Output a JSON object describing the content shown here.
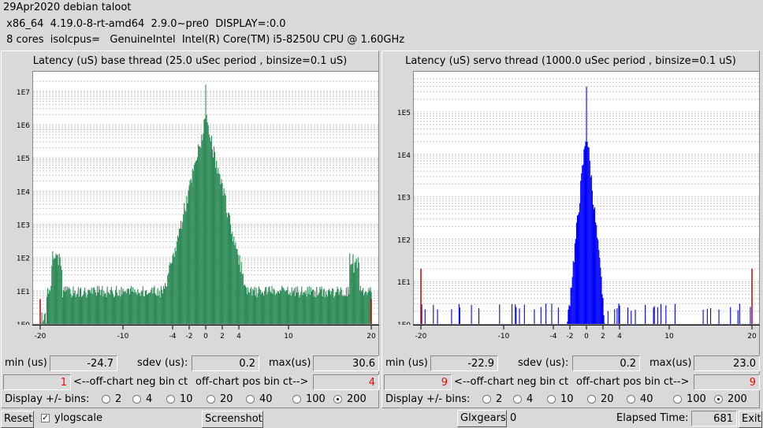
{
  "header": {
    "line1": "29Apr2020 debian taloot",
    "line2": " x86_64  4.19.0-8-rt-amd64  2.9.0~pre0  DISPLAY=:0.0",
    "line3": " 8 cores  isolcpus=   GenuineIntel  Intel(R) Core(TM) i5-8250U CPU @ 1.60GHz"
  },
  "base": {
    "title": "Latency (uS) base thread (25.0 uSec period , binsize=0.1 uS)",
    "min_label": "min (us)",
    "min": "-24.7",
    "sdev_label": "sdev (us):",
    "sdev": "0.2",
    "max_label": "max(us)",
    "max": "30.6",
    "neg_ct": "1",
    "neg_label": "<--off-chart neg bin ct",
    "pos_label": "off-chart pos bin ct-->",
    "pos_ct": "4",
    "bins_label": "Display +/- bins:",
    "bins": [
      "2",
      "4",
      "10",
      "20",
      "40",
      "100",
      "200"
    ],
    "selected_bin": "200"
  },
  "servo": {
    "title": "Latency (uS) servo thread (1000.0 uSec period , binsize=0.1 uS)",
    "min_label": "min (us)",
    "min": "-22.9",
    "sdev_label": "sdev (us):",
    "sdev": "0.2",
    "max_label": "max(us)",
    "max": "23.0",
    "neg_ct": "9",
    "neg_label": "<--off-chart neg bin ct",
    "pos_label": "off-chart pos bin ct-->",
    "pos_ct": "9",
    "bins_label": "Display +/- bins:",
    "bins": [
      "2",
      "4",
      "10",
      "20",
      "40",
      "100",
      "200"
    ],
    "selected_bin": "200"
  },
  "footer": {
    "reset": "Reset",
    "ylog_label": "ylogscale",
    "ylog_checked": true,
    "screenshot": "Screenshot",
    "glxgears": "Glxgears",
    "glx_count": "0",
    "elapsed_label": "Elapsed Time:",
    "elapsed": "681",
    "exit": "Exit"
  },
  "chart_data": [
    {
      "type": "bar",
      "title": "Latency (uS) base thread (25.0 uSec period , binsize=0.1 uS)",
      "color": "#2e8b57",
      "x_ticks": [
        "-20",
        "-10",
        "-4",
        "-2",
        "0",
        "2",
        "4",
        "10",
        "20"
      ],
      "y_ticks": [
        "1E0",
        "1E1",
        "1E2",
        "1E3",
        "1E4",
        "1E5",
        "1E6",
        "1E7"
      ],
      "ylog": true,
      "xlim": [
        -20,
        20
      ],
      "ylim_log10": [
        0,
        7.4
      ],
      "peak_log10": 7.2,
      "core_width": 1.6,
      "tail_log10": 0.9
    },
    {
      "type": "bar",
      "title": "Latency (uS) servo thread (1000.0 uSec period , binsize=0.1 uS)",
      "color": "#0000ff",
      "x_ticks": [
        "-20",
        "-10",
        "-4",
        "-2",
        "0",
        "2",
        "4",
        "10",
        "20"
      ],
      "y_ticks": [
        "1E0",
        "1E1",
        "1E2",
        "1E3",
        "1E4",
        "1E5"
      ],
      "ylog": true,
      "xlim": [
        -20,
        20
      ],
      "ylim_log10": [
        0,
        5.8
      ],
      "peak_log10": 5.6,
      "core_width": 0.9,
      "tail_log10": 0.35
    }
  ]
}
